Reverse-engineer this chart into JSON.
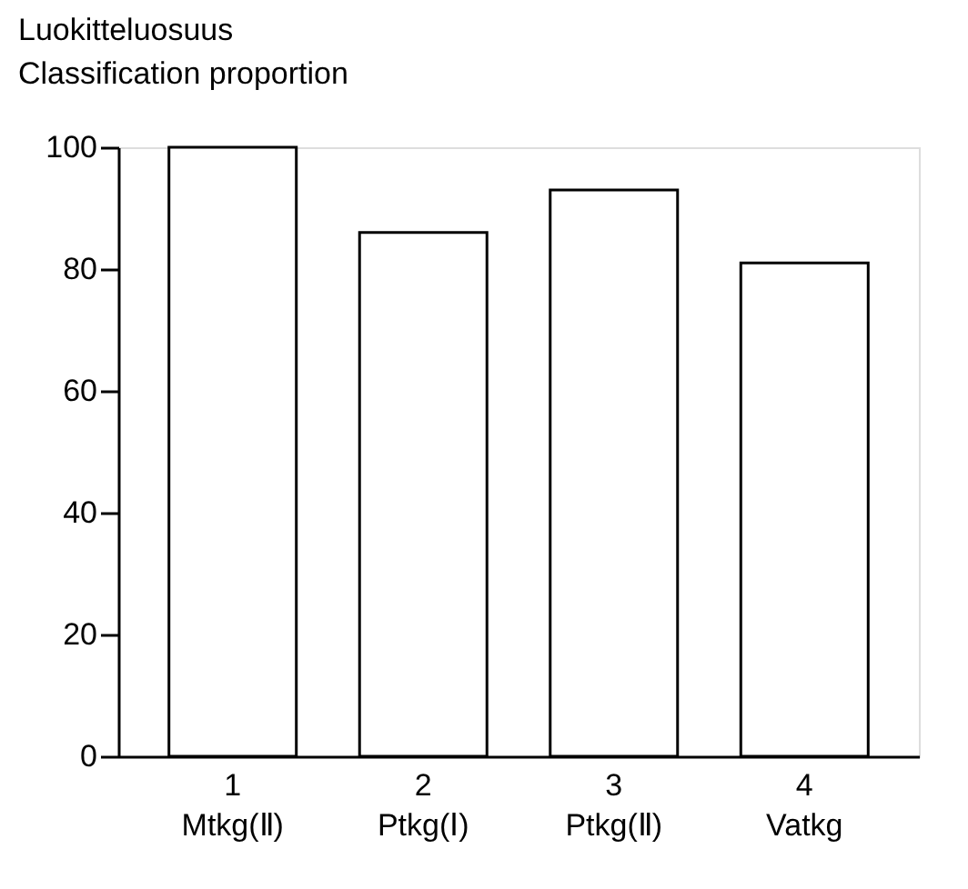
{
  "chart_data": {
    "type": "bar",
    "title": "Luokitteluosuus\nClassification proportion",
    "categories": [
      "1\nMtkg(Ⅱ)",
      "2\nPtkg(Ⅰ)",
      "3\nPtkg(Ⅱ)",
      "4\nVatkg"
    ],
    "values": [
      100,
      86,
      93,
      81
    ],
    "color": "#ffffff",
    "ylim": [
      0,
      100
    ],
    "yticks": [
      0,
      20,
      40,
      60,
      80,
      100
    ],
    "grid": false
  }
}
